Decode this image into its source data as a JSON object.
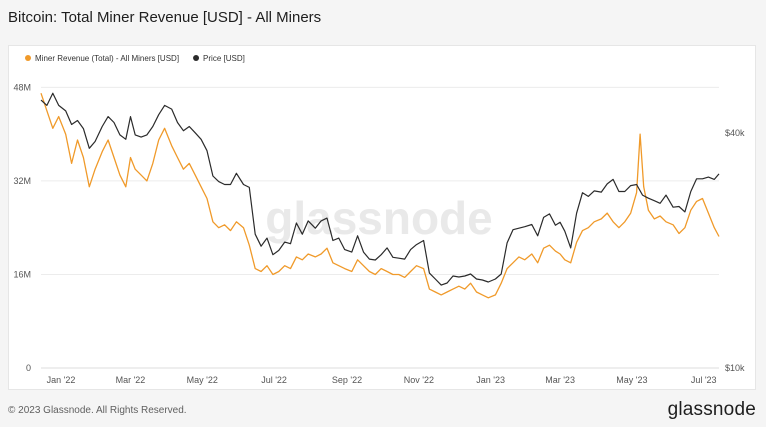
{
  "page": {
    "title": "Bitcoin: Total Miner Revenue [USD] - All Miners",
    "copyright": "© 2023 Glassnode. All Rights Reserved.",
    "brand": "glassnode",
    "watermark": "glassnode"
  },
  "colors": {
    "revenue": "#f09a2a",
    "price": "#2b2b2b",
    "grid": "#ececec",
    "axis_text": "#555555",
    "watermark": "#e9e9e9"
  },
  "chart_data": {
    "type": "line",
    "title": "Bitcoin: Total Miner Revenue [USD] - All Miners",
    "x_axis": {
      "type": "date",
      "range": [
        "2021-12-15",
        "2023-07-14"
      ],
      "ticks": [
        {
          "date": "2022-01-01",
          "label": "Jan '22"
        },
        {
          "date": "2022-03-01",
          "label": "Mar '22"
        },
        {
          "date": "2022-05-01",
          "label": "May '22"
        },
        {
          "date": "2022-07-01",
          "label": "Jul '22"
        },
        {
          "date": "2022-09-01",
          "label": "Sep '22"
        },
        {
          "date": "2022-11-01",
          "label": "Nov '22"
        },
        {
          "date": "2023-01-01",
          "label": "Jan '23"
        },
        {
          "date": "2023-03-01",
          "label": "Mar '23"
        },
        {
          "date": "2023-05-01",
          "label": "May '23"
        },
        {
          "date": "2023-07-01",
          "label": "Jul '23"
        }
      ]
    },
    "y_left": {
      "scale": "linear",
      "range": [
        0,
        52000000
      ],
      "ticks": [
        {
          "value": 0,
          "label": "0"
        },
        {
          "value": 16000000,
          "label": "16M"
        },
        {
          "value": 32000000,
          "label": "32M"
        },
        {
          "value": 48000000,
          "label": "48M"
        }
      ]
    },
    "y_right": {
      "scale": "log",
      "range": [
        10000,
        60000
      ],
      "ticks": [
        {
          "value": 10000,
          "label": "$10k"
        },
        {
          "value": 40000,
          "label": "$40k"
        }
      ]
    },
    "legend": {
      "position": "top-left"
    },
    "grid": true,
    "series": [
      {
        "name": "Miner Revenue (Total) - All Miners [USD]",
        "axis": "left",
        "points": [
          [
            "2021-12-15",
            47000000
          ],
          [
            "2021-12-20",
            44000000
          ],
          [
            "2021-12-25",
            41000000
          ],
          [
            "2021-12-30",
            43000000
          ],
          [
            "2022-01-05",
            40000000
          ],
          [
            "2022-01-10",
            35000000
          ],
          [
            "2022-01-15",
            39000000
          ],
          [
            "2022-01-20",
            36000000
          ],
          [
            "2022-01-25",
            31000000
          ],
          [
            "2022-01-30",
            34000000
          ],
          [
            "2022-02-05",
            37000000
          ],
          [
            "2022-02-10",
            39000000
          ],
          [
            "2022-02-15",
            36000000
          ],
          [
            "2022-02-20",
            33000000
          ],
          [
            "2022-02-25",
            31000000
          ],
          [
            "2022-03-01",
            36000000
          ],
          [
            "2022-03-05",
            34000000
          ],
          [
            "2022-03-10",
            33000000
          ],
          [
            "2022-03-15",
            32000000
          ],
          [
            "2022-03-20",
            35000000
          ],
          [
            "2022-03-25",
            39000000
          ],
          [
            "2022-03-30",
            41000000
          ],
          [
            "2022-04-05",
            38000000
          ],
          [
            "2022-04-10",
            36000000
          ],
          [
            "2022-04-15",
            34000000
          ],
          [
            "2022-04-20",
            35000000
          ],
          [
            "2022-04-25",
            33000000
          ],
          [
            "2022-04-30",
            31000000
          ],
          [
            "2022-05-05",
            29000000
          ],
          [
            "2022-05-10",
            25000000
          ],
          [
            "2022-05-15",
            24000000
          ],
          [
            "2022-05-20",
            24500000
          ],
          [
            "2022-05-25",
            23500000
          ],
          [
            "2022-05-30",
            25000000
          ],
          [
            "2022-06-05",
            24000000
          ],
          [
            "2022-06-10",
            21000000
          ],
          [
            "2022-06-15",
            17000000
          ],
          [
            "2022-06-20",
            16500000
          ],
          [
            "2022-06-25",
            17500000
          ],
          [
            "2022-06-30",
            16000000
          ],
          [
            "2022-07-05",
            16500000
          ],
          [
            "2022-07-10",
            17500000
          ],
          [
            "2022-07-15",
            17000000
          ],
          [
            "2022-07-20",
            19000000
          ],
          [
            "2022-07-25",
            18500000
          ],
          [
            "2022-07-30",
            19500000
          ],
          [
            "2022-08-05",
            19000000
          ],
          [
            "2022-08-10",
            19500000
          ],
          [
            "2022-08-15",
            20500000
          ],
          [
            "2022-08-20",
            18000000
          ],
          [
            "2022-08-25",
            17500000
          ],
          [
            "2022-08-30",
            17000000
          ],
          [
            "2022-09-05",
            16500000
          ],
          [
            "2022-09-10",
            18500000
          ],
          [
            "2022-09-15",
            17500000
          ],
          [
            "2022-09-20",
            16500000
          ],
          [
            "2022-09-25",
            16000000
          ],
          [
            "2022-09-30",
            17000000
          ],
          [
            "2022-10-05",
            16500000
          ],
          [
            "2022-10-10",
            16000000
          ],
          [
            "2022-10-15",
            16000000
          ],
          [
            "2022-10-20",
            15500000
          ],
          [
            "2022-10-25",
            16500000
          ],
          [
            "2022-10-30",
            17500000
          ],
          [
            "2022-11-05",
            17000000
          ],
          [
            "2022-11-10",
            13500000
          ],
          [
            "2022-11-15",
            13000000
          ],
          [
            "2022-11-20",
            12500000
          ],
          [
            "2022-11-25",
            13000000
          ],
          [
            "2022-11-30",
            13500000
          ],
          [
            "2022-12-05",
            14000000
          ],
          [
            "2022-12-10",
            13500000
          ],
          [
            "2022-12-15",
            14500000
          ],
          [
            "2022-12-20",
            13000000
          ],
          [
            "2022-12-25",
            12500000
          ],
          [
            "2022-12-30",
            12000000
          ],
          [
            "2023-01-05",
            12500000
          ],
          [
            "2023-01-10",
            14500000
          ],
          [
            "2023-01-15",
            17000000
          ],
          [
            "2023-01-20",
            18000000
          ],
          [
            "2023-01-25",
            19000000
          ],
          [
            "2023-01-30",
            18500000
          ],
          [
            "2023-02-05",
            19500000
          ],
          [
            "2023-02-10",
            18000000
          ],
          [
            "2023-02-15",
            20500000
          ],
          [
            "2023-02-20",
            21000000
          ],
          [
            "2023-02-25",
            20000000
          ],
          [
            "2023-03-01",
            19500000
          ],
          [
            "2023-03-05",
            18500000
          ],
          [
            "2023-03-10",
            18000000
          ],
          [
            "2023-03-15",
            21500000
          ],
          [
            "2023-03-20",
            23500000
          ],
          [
            "2023-03-25",
            24000000
          ],
          [
            "2023-03-30",
            25000000
          ],
          [
            "2023-04-05",
            25500000
          ],
          [
            "2023-04-10",
            26500000
          ],
          [
            "2023-04-15",
            25000000
          ],
          [
            "2023-04-20",
            24000000
          ],
          [
            "2023-04-25",
            25000000
          ],
          [
            "2023-04-30",
            26500000
          ],
          [
            "2023-05-05",
            30000000
          ],
          [
            "2023-05-08",
            40000000
          ],
          [
            "2023-05-11",
            31000000
          ],
          [
            "2023-05-15",
            27000000
          ],
          [
            "2023-05-20",
            25500000
          ],
          [
            "2023-05-25",
            26000000
          ],
          [
            "2023-05-30",
            25000000
          ],
          [
            "2023-06-05",
            24500000
          ],
          [
            "2023-06-10",
            23000000
          ],
          [
            "2023-06-15",
            24000000
          ],
          [
            "2023-06-20",
            27000000
          ],
          [
            "2023-06-25",
            28500000
          ],
          [
            "2023-06-30",
            29000000
          ],
          [
            "2023-07-05",
            26500000
          ],
          [
            "2023-07-10",
            24000000
          ],
          [
            "2023-07-14",
            22500000
          ]
        ]
      },
      {
        "name": "Price [USD]",
        "axis": "right",
        "points": [
          [
            "2021-12-15",
            48500
          ],
          [
            "2021-12-20",
            47000
          ],
          [
            "2021-12-25",
            50500
          ],
          [
            "2021-12-30",
            47000
          ],
          [
            "2022-01-05",
            45500
          ],
          [
            "2022-01-10",
            42000
          ],
          [
            "2022-01-15",
            43000
          ],
          [
            "2022-01-20",
            41000
          ],
          [
            "2022-01-25",
            36500
          ],
          [
            "2022-01-30",
            38000
          ],
          [
            "2022-02-05",
            41500
          ],
          [
            "2022-02-10",
            44000
          ],
          [
            "2022-02-15",
            42500
          ],
          [
            "2022-02-20",
            39500
          ],
          [
            "2022-02-25",
            38500
          ],
          [
            "2022-03-01",
            44000
          ],
          [
            "2022-03-05",
            39500
          ],
          [
            "2022-03-10",
            39000
          ],
          [
            "2022-03-15",
            39500
          ],
          [
            "2022-03-20",
            41500
          ],
          [
            "2022-03-25",
            44500
          ],
          [
            "2022-03-30",
            47000
          ],
          [
            "2022-04-05",
            46000
          ],
          [
            "2022-04-10",
            42500
          ],
          [
            "2022-04-15",
            40500
          ],
          [
            "2022-04-20",
            41500
          ],
          [
            "2022-04-25",
            40000
          ],
          [
            "2022-04-30",
            38500
          ],
          [
            "2022-05-05",
            36000
          ],
          [
            "2022-05-10",
            31000
          ],
          [
            "2022-05-15",
            30000
          ],
          [
            "2022-05-20",
            29500
          ],
          [
            "2022-05-25",
            29500
          ],
          [
            "2022-05-30",
            31500
          ],
          [
            "2022-06-05",
            29500
          ],
          [
            "2022-06-10",
            29000
          ],
          [
            "2022-06-15",
            22000
          ],
          [
            "2022-06-20",
            20500
          ],
          [
            "2022-06-25",
            21500
          ],
          [
            "2022-06-30",
            19500
          ],
          [
            "2022-07-05",
            20000
          ],
          [
            "2022-07-10",
            21000
          ],
          [
            "2022-07-15",
            20800
          ],
          [
            "2022-07-20",
            23500
          ],
          [
            "2022-07-25",
            22000
          ],
          [
            "2022-07-30",
            23800
          ],
          [
            "2022-08-05",
            22800
          ],
          [
            "2022-08-10",
            23800
          ],
          [
            "2022-08-15",
            24200
          ],
          [
            "2022-08-20",
            21200
          ],
          [
            "2022-08-25",
            21500
          ],
          [
            "2022-08-30",
            20100
          ],
          [
            "2022-09-05",
            19800
          ],
          [
            "2022-09-10",
            21800
          ],
          [
            "2022-09-15",
            19800
          ],
          [
            "2022-09-20",
            19000
          ],
          [
            "2022-09-25",
            18900
          ],
          [
            "2022-09-30",
            19500
          ],
          [
            "2022-10-05",
            20300
          ],
          [
            "2022-10-10",
            19200
          ],
          [
            "2022-10-15",
            19100
          ],
          [
            "2022-10-20",
            19000
          ],
          [
            "2022-10-25",
            20100
          ],
          [
            "2022-10-30",
            20700
          ],
          [
            "2022-11-05",
            21200
          ],
          [
            "2022-11-10",
            17500
          ],
          [
            "2022-11-15",
            16900
          ],
          [
            "2022-11-20",
            16300
          ],
          [
            "2022-11-25",
            16500
          ],
          [
            "2022-11-30",
            17200
          ],
          [
            "2022-12-05",
            17100
          ],
          [
            "2022-12-10",
            17200
          ],
          [
            "2022-12-15",
            17400
          ],
          [
            "2022-12-20",
            16900
          ],
          [
            "2022-12-25",
            16800
          ],
          [
            "2022-12-30",
            16600
          ],
          [
            "2023-01-05",
            16900
          ],
          [
            "2023-01-10",
            17400
          ],
          [
            "2023-01-15",
            20900
          ],
          [
            "2023-01-20",
            22600
          ],
          [
            "2023-01-25",
            22800
          ],
          [
            "2023-01-30",
            23000
          ],
          [
            "2023-02-05",
            23300
          ],
          [
            "2023-02-10",
            21800
          ],
          [
            "2023-02-15",
            24300
          ],
          [
            "2023-02-20",
            24800
          ],
          [
            "2023-02-25",
            23200
          ],
          [
            "2023-03-01",
            23600
          ],
          [
            "2023-03-05",
            22400
          ],
          [
            "2023-03-10",
            20300
          ],
          [
            "2023-03-15",
            24900
          ],
          [
            "2023-03-20",
            28100
          ],
          [
            "2023-03-25",
            27500
          ],
          [
            "2023-03-30",
            28400
          ],
          [
            "2023-04-05",
            28200
          ],
          [
            "2023-04-10",
            29600
          ],
          [
            "2023-04-15",
            30400
          ],
          [
            "2023-04-20",
            28300
          ],
          [
            "2023-04-25",
            28300
          ],
          [
            "2023-04-30",
            29300
          ],
          [
            "2023-05-05",
            29500
          ],
          [
            "2023-05-10",
            27700
          ],
          [
            "2023-05-15",
            27200
          ],
          [
            "2023-05-20",
            26800
          ],
          [
            "2023-05-25",
            26400
          ],
          [
            "2023-05-30",
            27700
          ],
          [
            "2023-06-05",
            25800
          ],
          [
            "2023-06-10",
            25900
          ],
          [
            "2023-06-15",
            25100
          ],
          [
            "2023-06-20",
            28300
          ],
          [
            "2023-06-25",
            30500
          ],
          [
            "2023-06-30",
            30500
          ],
          [
            "2023-07-05",
            30800
          ],
          [
            "2023-07-10",
            30400
          ],
          [
            "2023-07-14",
            31400
          ]
        ]
      }
    ]
  }
}
